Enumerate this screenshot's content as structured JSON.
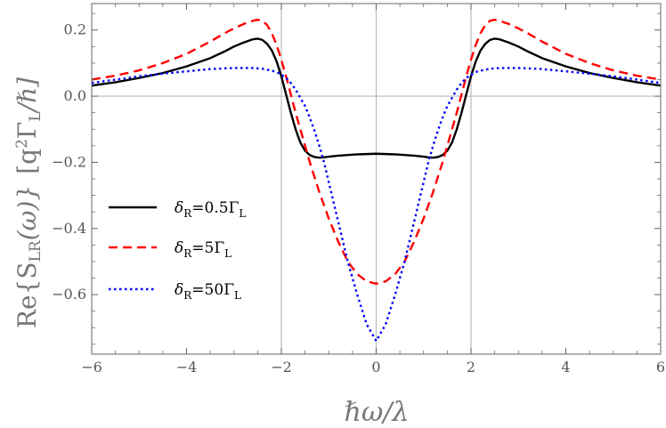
{
  "chart_data": {
    "type": "line",
    "title": "",
    "xlabel": "ℏω/λ",
    "ylabel": "Re{S_LR(ω)}  [q²Γ_L/ℏ]",
    "ylabel_parts": {
      "re": "Re{S",
      "sub_lr": "LR",
      "omega": "(ω)}",
      "units_open": "[q",
      "sup_2": "2",
      "gamma": "Γ",
      "sub_l": "L",
      "units_close": "/ℏ]"
    },
    "xlim": [
      -6,
      6
    ],
    "ylim": [
      -0.78,
      0.28
    ],
    "x_ticks": [
      -6,
      -4,
      -2,
      0,
      2,
      4,
      6
    ],
    "x_tick_labels": [
      "−6",
      "−4",
      "−2",
      "0",
      "2",
      "4",
      "6"
    ],
    "y_ticks": [
      -0.6,
      -0.4,
      -0.2,
      0.0,
      0.2
    ],
    "y_tick_labels": [
      "−0.6",
      "−0.4",
      "−0.2",
      "0.0",
      "0.2"
    ],
    "grid_lines": {
      "x": [
        -2,
        0,
        2
      ],
      "y": [
        0
      ]
    },
    "legend_position": "center-left",
    "x": [
      -6,
      -5.5,
      -5,
      -4.5,
      -4,
      -3.5,
      -3.2,
      -3,
      -2.8,
      -2.6,
      -2.5,
      -2.4,
      -2.3,
      -2.2,
      -2.1,
      -2,
      -1.9,
      -1.8,
      -1.7,
      -1.6,
      -1.5,
      -1.4,
      -1.3,
      -1.2,
      -1.1,
      -1,
      -0.8,
      -0.6,
      -0.4,
      -0.2,
      0,
      0.2,
      0.4,
      0.6,
      0.8,
      1,
      1.1,
      1.2,
      1.3,
      1.4,
      1.5,
      1.6,
      1.7,
      1.8,
      1.9,
      2,
      2.1,
      2.2,
      2.3,
      2.4,
      2.5,
      2.6,
      2.8,
      3,
      3.2,
      3.5,
      4,
      4.5,
      5,
      5.5,
      6
    ],
    "series": [
      {
        "name": "δR=0.5ΓL",
        "legend": {
          "delta": "δ",
          "sub_r": "R",
          "eq": "=0.5",
          "gamma": "Γ",
          "sub_l": "L"
        },
        "color": "#000000",
        "dash": "solid",
        "values": [
          0.032,
          0.042,
          0.055,
          0.07,
          0.09,
          0.115,
          0.135,
          0.15,
          0.162,
          0.172,
          0.174,
          0.17,
          0.158,
          0.138,
          0.105,
          0.06,
          0.005,
          -0.05,
          -0.1,
          -0.14,
          -0.165,
          -0.178,
          -0.184,
          -0.186,
          -0.185,
          -0.183,
          -0.18,
          -0.178,
          -0.176,
          -0.175,
          -0.174,
          -0.175,
          -0.176,
          -0.178,
          -0.18,
          -0.183,
          -0.185,
          -0.186,
          -0.184,
          -0.178,
          -0.165,
          -0.14,
          -0.1,
          -0.05,
          0.005,
          0.06,
          0.105,
          0.138,
          0.158,
          0.17,
          0.174,
          0.172,
          0.162,
          0.15,
          0.135,
          0.115,
          0.09,
          0.07,
          0.055,
          0.042,
          0.032
        ]
      },
      {
        "name": "δR=5ΓL",
        "legend": {
          "delta": "δ",
          "sub_r": "R",
          "eq": "=5",
          "gamma": "Γ",
          "sub_l": "L"
        },
        "color": "#ff0000",
        "dash": "dashed",
        "values": [
          0.05,
          0.062,
          0.078,
          0.1,
          0.128,
          0.165,
          0.19,
          0.205,
          0.218,
          0.228,
          0.231,
          0.228,
          0.215,
          0.19,
          0.155,
          0.11,
          0.06,
          0.005,
          -0.05,
          -0.1,
          -0.15,
          -0.2,
          -0.245,
          -0.29,
          -0.33,
          -0.37,
          -0.44,
          -0.5,
          -0.538,
          -0.56,
          -0.567,
          -0.56,
          -0.538,
          -0.5,
          -0.44,
          -0.37,
          -0.33,
          -0.29,
          -0.245,
          -0.2,
          -0.15,
          -0.1,
          -0.05,
          0.005,
          0.06,
          0.11,
          0.155,
          0.19,
          0.215,
          0.228,
          0.231,
          0.228,
          0.218,
          0.205,
          0.19,
          0.165,
          0.128,
          0.1,
          0.078,
          0.062,
          0.05
        ]
      },
      {
        "name": "δR=50ΓL",
        "legend": {
          "delta": "δ",
          "sub_r": "R",
          "eq": "=50",
          "gamma": "Γ",
          "sub_l": "L"
        },
        "color": "#0000ff",
        "dash": "dotted",
        "values": [
          0.04,
          0.05,
          0.06,
          0.068,
          0.075,
          0.082,
          0.084,
          0.085,
          0.085,
          0.085,
          0.084,
          0.083,
          0.08,
          0.077,
          0.073,
          0.065,
          0.055,
          0.04,
          0.02,
          -0.005,
          -0.03,
          -0.065,
          -0.105,
          -0.15,
          -0.2,
          -0.26,
          -0.38,
          -0.5,
          -0.6,
          -0.69,
          -0.74,
          -0.69,
          -0.6,
          -0.5,
          -0.38,
          -0.26,
          -0.2,
          -0.15,
          -0.105,
          -0.065,
          -0.03,
          -0.005,
          0.02,
          0.04,
          0.055,
          0.065,
          0.073,
          0.077,
          0.08,
          0.083,
          0.084,
          0.085,
          0.085,
          0.085,
          0.084,
          0.082,
          0.075,
          0.068,
          0.06,
          0.05,
          0.04
        ]
      }
    ]
  }
}
